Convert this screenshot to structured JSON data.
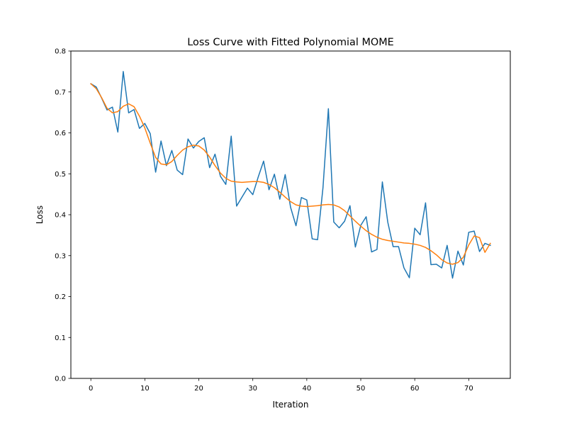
{
  "chart_data": {
    "type": "line",
    "title": "Loss Curve with Fitted Polynomial MOME",
    "xlabel": "Iteration",
    "ylabel": "Loss",
    "xlim": [
      -3.7,
      77.7
    ],
    "ylim": [
      0.0,
      0.8
    ],
    "x_ticks": [
      0,
      10,
      20,
      30,
      40,
      50,
      60,
      70
    ],
    "y_ticks": [
      0.0,
      0.1,
      0.2,
      0.3,
      0.4,
      0.5,
      0.6,
      0.7,
      0.8
    ],
    "x_tick_labels": [
      "0",
      "10",
      "20",
      "30",
      "40",
      "50",
      "60",
      "70"
    ],
    "y_tick_labels": [
      "0.0",
      "0.1",
      "0.2",
      "0.3",
      "0.4",
      "0.5",
      "0.6",
      "0.7",
      "0.8"
    ],
    "grid": false,
    "legend": null,
    "series": [
      {
        "color": "#1f77b4",
        "x": [
          0,
          1,
          2,
          3,
          4,
          5,
          6,
          7,
          8,
          9,
          10,
          11,
          12,
          13,
          14,
          15,
          16,
          17,
          18,
          19,
          20,
          21,
          22,
          23,
          24,
          25,
          26,
          27,
          28,
          29,
          30,
          31,
          32,
          33,
          34,
          35,
          36,
          37,
          38,
          39,
          40,
          41,
          42,
          43,
          44,
          45,
          46,
          47,
          48,
          49,
          50,
          51,
          52,
          53,
          54,
          55,
          56,
          57,
          58,
          59,
          60,
          61,
          62,
          63,
          64,
          65,
          66,
          67,
          68,
          69,
          70,
          71,
          72,
          73,
          74
        ],
        "y": [
          0.72,
          0.712,
          0.685,
          0.656,
          0.663,
          0.602,
          0.75,
          0.649,
          0.657,
          0.611,
          0.623,
          0.598,
          0.504,
          0.58,
          0.52,
          0.557,
          0.509,
          0.498,
          0.585,
          0.563,
          0.579,
          0.588,
          0.515,
          0.548,
          0.494,
          0.474,
          0.592,
          0.421,
          0.443,
          0.465,
          0.449,
          0.492,
          0.531,
          0.461,
          0.499,
          0.438,
          0.498,
          0.418,
          0.373,
          0.442,
          0.436,
          0.341,
          0.339,
          0.466,
          0.659,
          0.382,
          0.368,
          0.384,
          0.422,
          0.321,
          0.374,
          0.395,
          0.309,
          0.315,
          0.48,
          0.382,
          0.322,
          0.322,
          0.27,
          0.246,
          0.367,
          0.351,
          0.429,
          0.278,
          0.279,
          0.27,
          0.325,
          0.245,
          0.311,
          0.277,
          0.357,
          0.36,
          0.31,
          0.33,
          0.325
        ]
      },
      {
        "color": "#ff7f0e",
        "x": [
          0,
          1,
          2,
          3,
          4,
          5,
          6,
          7,
          8,
          9,
          10,
          11,
          12,
          13,
          14,
          15,
          16,
          17,
          18,
          19,
          20,
          21,
          22,
          23,
          24,
          25,
          26,
          27,
          28,
          29,
          30,
          31,
          32,
          33,
          34,
          35,
          36,
          37,
          38,
          39,
          40,
          41,
          42,
          43,
          44,
          45,
          46,
          47,
          48,
          49,
          50,
          51,
          52,
          53,
          54,
          55,
          56,
          57,
          58,
          59,
          60,
          61,
          62,
          63,
          64,
          65,
          66,
          67,
          68,
          69,
          70,
          71,
          72,
          73,
          74
        ],
        "y": [
          0.72,
          0.708,
          0.686,
          0.66,
          0.649,
          0.652,
          0.665,
          0.671,
          0.664,
          0.641,
          0.612,
          0.575,
          0.54,
          0.524,
          0.522,
          0.53,
          0.545,
          0.558,
          0.566,
          0.57,
          0.568,
          0.558,
          0.541,
          0.52,
          0.502,
          0.489,
          0.482,
          0.48,
          0.479,
          0.48,
          0.481,
          0.481,
          0.479,
          0.474,
          0.466,
          0.455,
          0.443,
          0.432,
          0.424,
          0.421,
          0.42,
          0.421,
          0.422,
          0.424,
          0.425,
          0.424,
          0.419,
          0.41,
          0.397,
          0.384,
          0.372,
          0.361,
          0.352,
          0.345,
          0.34,
          0.337,
          0.335,
          0.333,
          0.331,
          0.33,
          0.328,
          0.325,
          0.32,
          0.312,
          0.302,
          0.29,
          0.282,
          0.279,
          0.283,
          0.296,
          0.326,
          0.348,
          0.344,
          0.308,
          0.33
        ]
      }
    ]
  }
}
